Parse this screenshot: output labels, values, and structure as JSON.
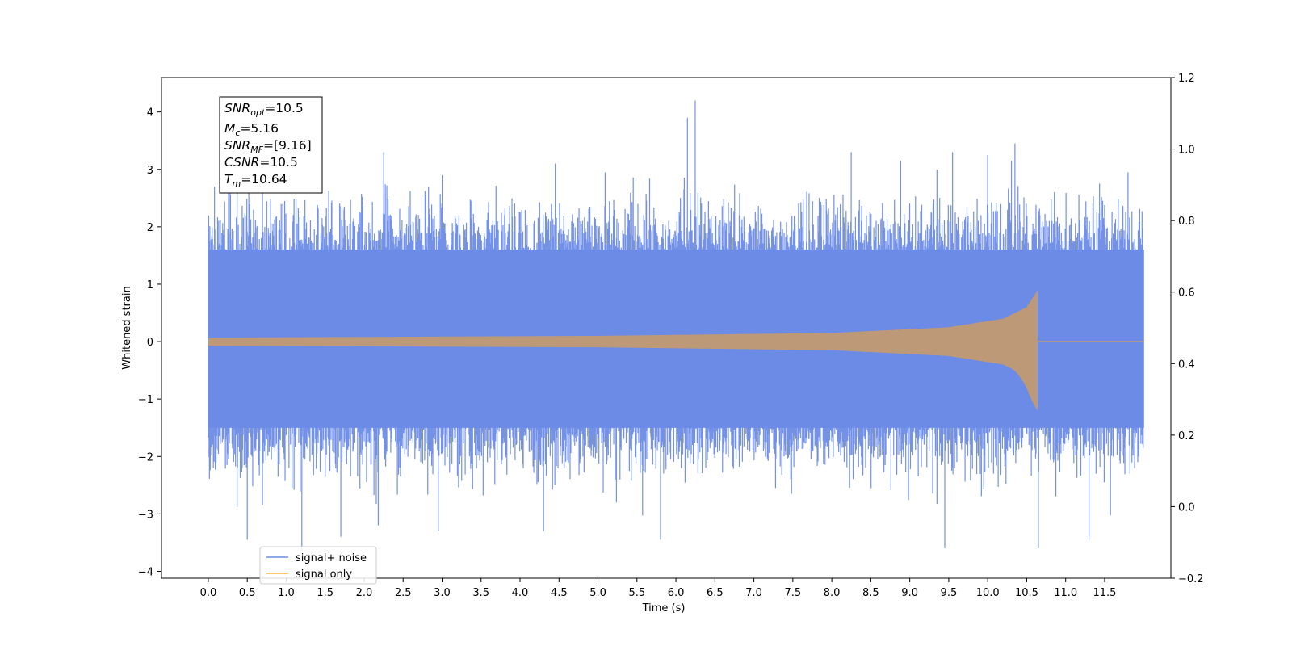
{
  "chart_data": {
    "type": "line",
    "xlabel": "Time (s)",
    "ylabel": "Whitened strain",
    "xlim": [
      -0.6,
      12.35
    ],
    "ylim": [
      -4.12,
      4.6
    ],
    "y2lim": [
      -0.2,
      1.2
    ],
    "x_ticks": [
      "0.0",
      "0.5",
      "1.0",
      "1.5",
      "2.0",
      "2.5",
      "3.0",
      "3.5",
      "4.0",
      "4.5",
      "5.0",
      "5.5",
      "6.0",
      "6.5",
      "7.0",
      "7.5",
      "8.0",
      "8.5",
      "9.0",
      "9.5",
      "10.0",
      "10.5",
      "11.0",
      "11.5"
    ],
    "y_ticks": [
      "−4",
      "−3",
      "−2",
      "−1",
      "0",
      "1",
      "2",
      "3",
      "4"
    ],
    "y2_ticks": [
      "−0.2",
      "0.0",
      "0.2",
      "0.4",
      "0.6",
      "0.8",
      "1.0",
      "1.2"
    ],
    "grid": false,
    "legend": {
      "location": "lower-left"
    },
    "series": [
      {
        "name": "signal+ noise",
        "color": "#6b8be6",
        "x_range": [
          0.0,
          12.0
        ],
        "core_band": [
          -1.5,
          1.6
        ],
        "peaks_high": [
          {
            "x": 0.08,
            "y": 2.7
          },
          {
            "x": 0.52,
            "y": 2.75
          },
          {
            "x": 2.25,
            "y": 3.3
          },
          {
            "x": 3.0,
            "y": 2.9
          },
          {
            "x": 4.45,
            "y": 3.1
          },
          {
            "x": 6.15,
            "y": 3.9
          },
          {
            "x": 6.25,
            "y": 4.2
          },
          {
            "x": 8.25,
            "y": 3.3
          },
          {
            "x": 9.55,
            "y": 3.3
          },
          {
            "x": 10.0,
            "y": 3.25
          },
          {
            "x": 10.35,
            "y": 3.45
          },
          {
            "x": 11.8,
            "y": 2.95
          }
        ],
        "peaks_low": [
          {
            "x": 0.5,
            "y": -3.45
          },
          {
            "x": 1.2,
            "y": -3.65
          },
          {
            "x": 1.7,
            "y": -3.4
          },
          {
            "x": 2.95,
            "y": -3.3
          },
          {
            "x": 4.3,
            "y": -3.3
          },
          {
            "x": 5.8,
            "y": -3.45
          },
          {
            "x": 9.45,
            "y": -3.6
          },
          {
            "x": 10.65,
            "y": -3.6
          },
          {
            "x": 11.3,
            "y": -3.45
          }
        ]
      },
      {
        "name": "signal only",
        "color": "#ffb43c",
        "x_range": [
          0.0,
          12.0
        ],
        "chirp_envelope": [
          {
            "x": 0.0,
            "y": 0.07
          },
          {
            "x": 5.0,
            "y": 0.1
          },
          {
            "x": 8.0,
            "y": 0.15
          },
          {
            "x": 9.5,
            "y": 0.25
          },
          {
            "x": 10.2,
            "y": 0.4
          },
          {
            "x": 10.5,
            "y": 0.6
          },
          {
            "x": 10.64,
            "y": 0.9
          }
        ],
        "merger_min": -1.2,
        "merger_time": 10.64
      }
    ],
    "annotation": {
      "lines": [
        {
          "sym": "SNR",
          "sub": "opt",
          "val": "=10.5"
        },
        {
          "sym": "M",
          "sub": "c",
          "val": "=5.16"
        },
        {
          "sym": "SNR",
          "sub": "MF",
          "val": "=[9.16]"
        },
        {
          "sym": "CSNR",
          "sub": "",
          "val": "=10.5"
        },
        {
          "sym": "T",
          "sub": "m",
          "val": "=10.64"
        }
      ]
    }
  }
}
